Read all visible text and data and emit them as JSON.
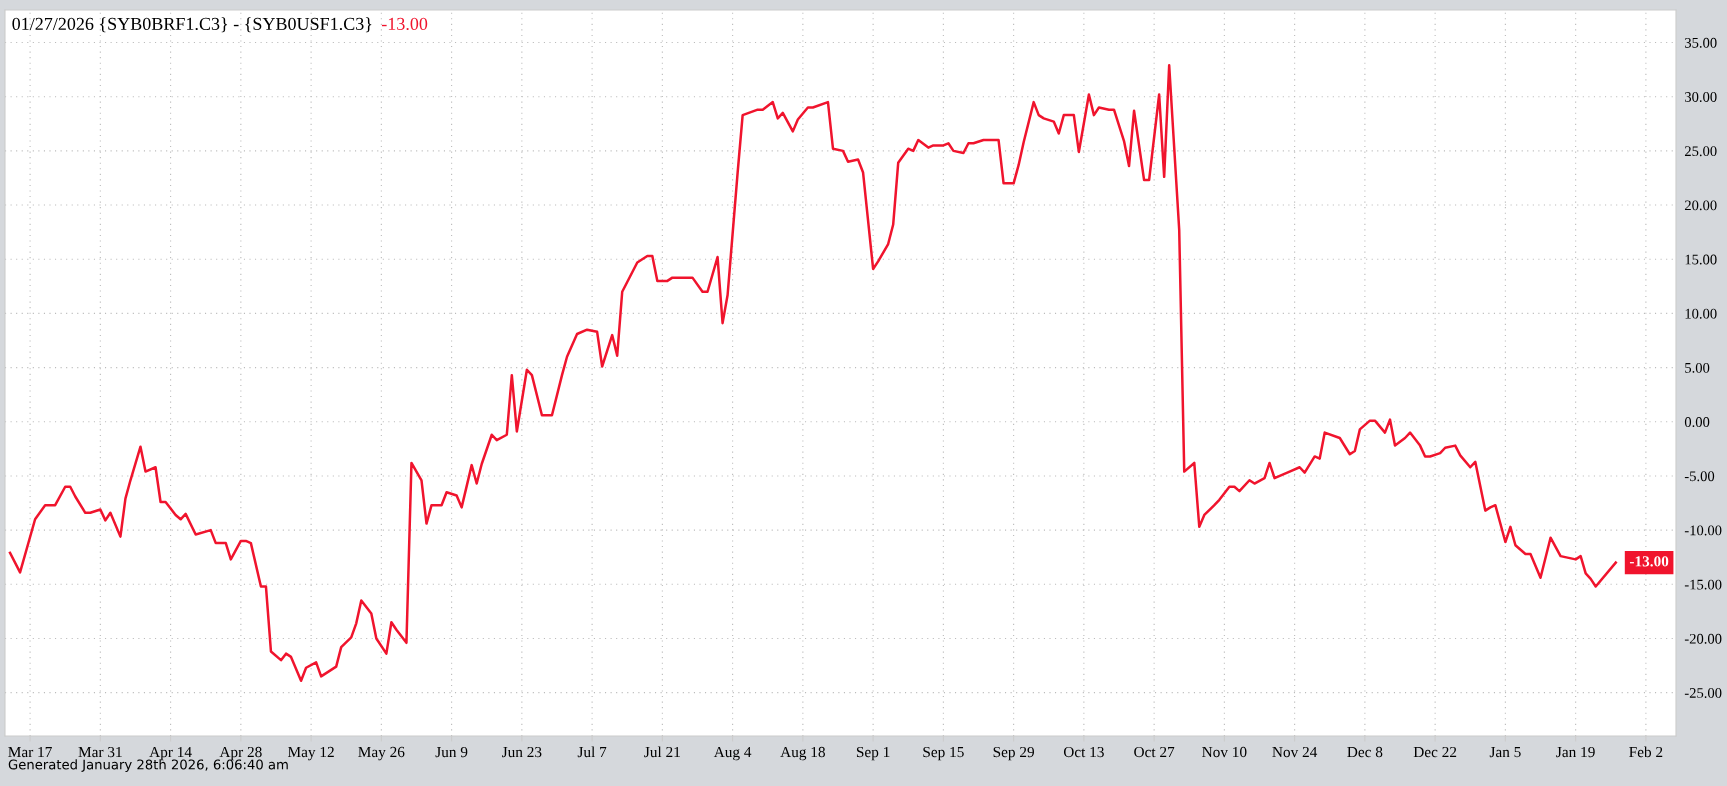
{
  "chart_data": {
    "type": "line",
    "title": "01/27/2026 {SYB0BRF1.C3} - {SYB0USF1.C3}",
    "annotations": [
      "-13.00",
      {
        "text": "-13.00",
        "x": "2026-01-27",
        "y": -13
      },
      "Generated January 28th 2026, 6:06:40 am"
    ],
    "series": [
      {
        "color": "#f0142d",
        "x": [
          "2025-03-13",
          "2025-03-15",
          "2025-03-18",
          "2025-03-20",
          "2025-03-22",
          "2025-03-24",
          "2025-03-25",
          "2025-03-26",
          "2025-03-28",
          "2025-03-29",
          "2025-03-31",
          "2025-04-01",
          "2025-04-02",
          "2025-04-04",
          "2025-04-05",
          "2025-04-06",
          "2025-04-08",
          "2025-04-09",
          "2025-04-11",
          "2025-04-12",
          "2025-04-13",
          "2025-04-15",
          "2025-04-16",
          "2025-04-17",
          "2025-04-19",
          "2025-04-22",
          "2025-04-23",
          "2025-04-25",
          "2025-04-26",
          "2025-04-28",
          "2025-04-29",
          "2025-04-30",
          "2025-05-02",
          "2025-05-03",
          "2025-05-04",
          "2025-05-06",
          "2025-05-07",
          "2025-05-08",
          "2025-05-10",
          "2025-05-11",
          "2025-05-13",
          "2025-05-14",
          "2025-05-16",
          "2025-05-17",
          "2025-05-18",
          "2025-05-20",
          "2025-05-21",
          "2025-05-22",
          "2025-05-24",
          "2025-05-25",
          "2025-05-27",
          "2025-05-28",
          "2025-05-29",
          "2025-05-31",
          "2025-06-01",
          "2025-06-03",
          "2025-06-04",
          "2025-06-05",
          "2025-06-07",
          "2025-06-08",
          "2025-06-10",
          "2025-06-11",
          "2025-06-13",
          "2025-06-14",
          "2025-06-15",
          "2025-06-17",
          "2025-06-18",
          "2025-06-20",
          "2025-06-21",
          "2025-06-22",
          "2025-06-24",
          "2025-06-25",
          "2025-06-27",
          "2025-06-29",
          "2025-07-01",
          "2025-07-02",
          "2025-07-04",
          "2025-07-06",
          "2025-07-08",
          "2025-07-09",
          "2025-07-11",
          "2025-07-12",
          "2025-07-13",
          "2025-07-15",
          "2025-07-16",
          "2025-07-18",
          "2025-07-19",
          "2025-07-20",
          "2025-07-22",
          "2025-07-23",
          "2025-07-27",
          "2025-07-29",
          "2025-07-30",
          "2025-08-01",
          "2025-08-02",
          "2025-08-03",
          "2025-08-05",
          "2025-08-06",
          "2025-08-09",
          "2025-08-10",
          "2025-08-12",
          "2025-08-13",
          "2025-08-14",
          "2025-08-16",
          "2025-08-17",
          "2025-08-19",
          "2025-08-20",
          "2025-08-23",
          "2025-08-24",
          "2025-08-26",
          "2025-08-27",
          "2025-08-29",
          "2025-08-30",
          "2025-09-01",
          "2025-09-02",
          "2025-09-04",
          "2025-09-05",
          "2025-09-06",
          "2025-09-08",
          "2025-09-09",
          "2025-09-10",
          "2025-09-12",
          "2025-09-13",
          "2025-09-15",
          "2025-09-16",
          "2025-09-17",
          "2025-09-19",
          "2025-09-20",
          "2025-09-21",
          "2025-09-23",
          "2025-09-26",
          "2025-09-27",
          "2025-09-29",
          "2025-09-30",
          "2025-10-01",
          "2025-10-03",
          "2025-10-04",
          "2025-10-05",
          "2025-10-07",
          "2025-10-08",
          "2025-10-09",
          "2025-10-11",
          "2025-10-12",
          "2025-10-14",
          "2025-10-15",
          "2025-10-16",
          "2025-10-18",
          "2025-10-19",
          "2025-10-21",
          "2025-10-22",
          "2025-10-23",
          "2025-10-25",
          "2025-10-26",
          "2025-10-28",
          "2025-10-29",
          "2025-10-30",
          "2025-11-01",
          "2025-11-02",
          "2025-11-04",
          "2025-11-05",
          "2025-11-06",
          "2025-11-08",
          "2025-11-09",
          "2025-11-11",
          "2025-11-12",
          "2025-11-13",
          "2025-11-15",
          "2025-11-16",
          "2025-11-18",
          "2025-11-19",
          "2025-11-20",
          "2025-11-23",
          "2025-11-25",
          "2025-11-26",
          "2025-11-28",
          "2025-11-29",
          "2025-11-30",
          "2025-12-03",
          "2025-12-05",
          "2025-12-06",
          "2025-12-07",
          "2025-12-09",
          "2025-12-10",
          "2025-12-12",
          "2025-12-13",
          "2025-12-14",
          "2025-12-16",
          "2025-12-17",
          "2025-12-19",
          "2025-12-20",
          "2025-12-21",
          "2025-12-23",
          "2025-12-24",
          "2025-12-26",
          "2025-12-27",
          "2025-12-29",
          "2025-12-30",
          "2026-01-01",
          "2026-01-02",
          "2026-01-03",
          "2026-01-05",
          "2026-01-06",
          "2026-01-07",
          "2026-01-09",
          "2026-01-10",
          "2026-01-12",
          "2026-01-14",
          "2026-01-16",
          "2026-01-19",
          "2026-01-20",
          "2026-01-21",
          "2026-01-22",
          "2026-01-23",
          "2026-01-27"
        ],
        "values": [
          -12.1,
          -13.9,
          -9.0,
          -7.7,
          -7.7,
          -6.0,
          -6.0,
          -6.9,
          -8.4,
          -8.4,
          -8.1,
          -9.1,
          -8.4,
          -10.6,
          -7.1,
          -5.4,
          -2.3,
          -4.6,
          -4.2,
          -7.4,
          -7.4,
          -8.6,
          -9.0,
          -8.5,
          -10.4,
          -10.0,
          -11.2,
          -11.2,
          -12.7,
          -11.0,
          -11.0,
          -11.2,
          -15.2,
          -15.2,
          -21.2,
          -22.0,
          -21.4,
          -21.7,
          -23.9,
          -22.7,
          -22.2,
          -23.5,
          -22.9,
          -22.6,
          -20.8,
          -19.9,
          -18.6,
          -16.5,
          -17.7,
          -20.0,
          -21.4,
          -18.5,
          -19.2,
          -20.4,
          -3.8,
          -5.4,
          -9.4,
          -7.7,
          -7.7,
          -6.5,
          -6.8,
          -7.9,
          -4.0,
          -5.7,
          -3.9,
          -1.2,
          -1.7,
          -1.2,
          4.3,
          -0.9,
          4.8,
          4.3,
          0.6,
          0.6,
          4.3,
          6.0,
          8.1,
          8.5,
          8.3,
          5.1,
          8.0,
          6.1,
          12.0,
          13.8,
          14.7,
          15.3,
          15.3,
          13.0,
          13.0,
          13.3,
          13.3,
          12.0,
          12.0,
          15.2,
          9.1,
          11.7,
          23.0,
          28.3,
          28.8,
          28.8,
          29.5,
          28.0,
          28.5,
          26.8,
          27.9,
          29.0,
          29.0,
          29.5,
          25.2,
          25.0,
          24.0,
          24.2,
          23.0,
          14.1,
          14.8,
          16.4,
          18.2,
          23.9,
          25.2,
          25.0,
          26.0,
          25.3,
          25.5,
          25.5,
          25.7,
          25.0,
          24.8,
          25.7,
          25.7,
          26.0,
          26.0,
          22.0,
          22.0,
          23.7,
          25.8,
          29.5,
          28.3,
          28.0,
          27.7,
          26.6,
          28.3,
          28.3,
          24.9,
          30.2,
          28.3,
          29.0,
          28.8,
          28.8,
          25.9,
          23.6,
          28.7,
          22.3,
          22.3,
          30.2,
          22.6,
          32.9,
          17.7,
          -4.6,
          -3.8,
          -9.7,
          -8.6,
          -7.7,
          -7.2,
          -6.0,
          -6.0,
          -6.4,
          -5.4,
          -5.7,
          -5.2,
          -3.8,
          -5.2,
          -4.6,
          -4.2,
          -4.7,
          -3.2,
          -3.4,
          -1.0,
          -1.5,
          -3.0,
          -2.7,
          -0.7,
          0.1,
          0.1,
          -1.0,
          0.2,
          -2.2,
          -1.5,
          -1.0,
          -2.2,
          -3.2,
          -3.2,
          -2.9,
          -2.4,
          -2.2,
          -3.1,
          -4.2,
          -3.7,
          -8.2,
          -7.9,
          -7.7,
          -11.1,
          -9.7,
          -11.4,
          -12.2,
          -12.2,
          -14.4,
          -10.7,
          -12.4,
          -12.7,
          -12.4,
          -14.0,
          -14.5,
          -15.2,
          -13.0
        ]
      }
    ],
    "xlim": [
      "2025-03-12",
      "2026-02-08"
    ],
    "xticks": [
      {
        "value": "2025-03-17",
        "label": "Mar 17"
      },
      {
        "value": "2025-03-31",
        "label": "Mar 31"
      },
      {
        "value": "2025-04-14",
        "label": "Apr 14"
      },
      {
        "value": "2025-04-28",
        "label": "Apr 28"
      },
      {
        "value": "2025-05-12",
        "label": "May 12"
      },
      {
        "value": "2025-05-26",
        "label": "May 26"
      },
      {
        "value": "2025-06-09",
        "label": "Jun 9"
      },
      {
        "value": "2025-06-23",
        "label": "Jun 23"
      },
      {
        "value": "2025-07-07",
        "label": "Jul 7"
      },
      {
        "value": "2025-07-21",
        "label": "Jul 21"
      },
      {
        "value": "2025-08-04",
        "label": "Aug 4"
      },
      {
        "value": "2025-08-18",
        "label": "Aug 18"
      },
      {
        "value": "2025-09-01",
        "label": "Sep 1"
      },
      {
        "value": "2025-09-15",
        "label": "Sep 15"
      },
      {
        "value": "2025-09-29",
        "label": "Sep 29"
      },
      {
        "value": "2025-10-13",
        "label": "Oct 13"
      },
      {
        "value": "2025-10-27",
        "label": "Oct 27"
      },
      {
        "value": "2025-11-10",
        "label": "Nov 10"
      },
      {
        "value": "2025-11-24",
        "label": "Nov 24"
      },
      {
        "value": "2025-12-08",
        "label": "Dec 8"
      },
      {
        "value": "2025-12-22",
        "label": "Dec 22"
      },
      {
        "value": "2026-01-05",
        "label": "Jan 5"
      },
      {
        "value": "2026-01-19",
        "label": "Jan 19"
      },
      {
        "value": "2026-02-02",
        "label": "Feb 2"
      }
    ],
    "ylim": [
      -29,
      38
    ],
    "yticks": [
      {
        "value": -25,
        "label": "-25.00"
      },
      {
        "value": -20,
        "label": "-20.00"
      },
      {
        "value": -15,
        "label": "-15.00"
      },
      {
        "value": -10,
        "label": "-10.00"
      },
      {
        "value": -5,
        "label": "-5.00"
      },
      {
        "value": 0,
        "label": "0.00"
      },
      {
        "value": 5,
        "label": "5.00"
      },
      {
        "value": 10,
        "label": "10.00"
      },
      {
        "value": 15,
        "label": "15.00"
      },
      {
        "value": 20,
        "label": "20.00"
      },
      {
        "value": 25,
        "label": "25.00"
      },
      {
        "value": 30,
        "label": "30.00"
      },
      {
        "value": 35,
        "label": "35.00"
      }
    ],
    "grid": true,
    "legend": false,
    "marker": "none",
    "line_style": "solid"
  }
}
